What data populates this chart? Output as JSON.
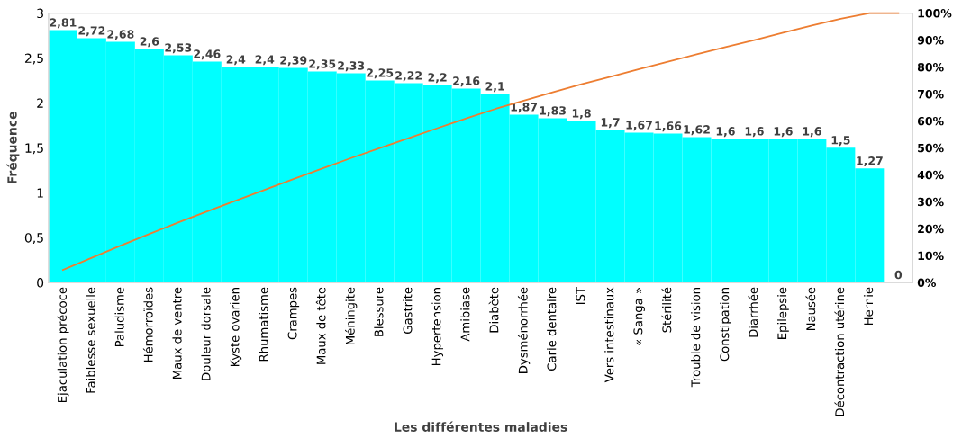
{
  "chart_data": {
    "type": "bar",
    "xlabel": "Les différentes maladies",
    "ylabel": "Fréquence",
    "categories": [
      "Ejaculation précoce",
      "Faiblesse sexuelle",
      "Paludisme",
      "Hémorroïdes",
      "Maux de ventre",
      "Douleur dorsale",
      "Kyste ovarien",
      "Rhumatisme",
      "Crampes",
      "Maux de tête",
      "Méningite",
      "Blessure",
      "Gastrite",
      "Hypertension",
      "Amibiase",
      "Diabète",
      "Dysménorrhée",
      "Carie dentaire",
      "IST",
      "Vers intestinaux",
      "« Sanga »",
      "Stérilité",
      "Trouble de vision",
      "Constipation",
      "Diarrhée",
      "Epilepsie",
      "Nausée",
      "Décontraction utérine",
      "Hernie",
      null
    ],
    "series": [
      {
        "color": "#00ffff",
        "values": [
          2.81,
          2.72,
          2.68,
          2.6,
          2.53,
          2.46,
          2.4,
          2.4,
          2.39,
          2.35,
          2.33,
          2.25,
          2.22,
          2.2,
          2.16,
          2.1,
          1.87,
          1.83,
          1.8,
          1.7,
          1.67,
          1.66,
          1.62,
          1.6,
          1.6,
          1.6,
          1.6,
          1.5,
          1.27,
          0
        ],
        "value_labels": [
          "2,81",
          "2,72",
          "2,68",
          "2,6",
          "2,53",
          "2,46",
          "2,4",
          "2,4",
          "2,39",
          "2,35",
          "2,33",
          "2,25",
          "2,22",
          "2,2",
          "2,16",
          "2,1",
          "1,87",
          "1,83",
          "1,8",
          "1,7",
          "1,67",
          "1,66",
          "1,62",
          "1,6",
          "1,6",
          "1,6",
          "1,6",
          "1,5",
          "1,27",
          "0"
        ]
      },
      {
        "type": "line",
        "axis": "y2",
        "color": "#ed7d31",
        "values": [
          4.7,
          9.2,
          13.7,
          18.0,
          22.3,
          26.4,
          30.4,
          34.4,
          38.4,
          42.3,
          46.2,
          49.9,
          53.6,
          57.3,
          60.9,
          64.4,
          67.5,
          70.6,
          73.6,
          76.4,
          79.2,
          82.0,
          84.7,
          87.4,
          90.0,
          92.7,
          95.4,
          97.9,
          100,
          100
        ]
      }
    ],
    "ylim": [
      0,
      3
    ],
    "yticks": [
      0,
      {
        "value": 0.5,
        "label": "0,5"
      },
      1,
      {
        "value": 1.5,
        "label": "1,5"
      },
      2,
      {
        "value": 2.5,
        "label": "2,5"
      },
      3
    ],
    "y2lim": [
      0,
      100
    ],
    "y2ticks": [
      {
        "value": 0,
        "label": "0%"
      },
      {
        "value": 10,
        "label": "10%"
      },
      {
        "value": 20,
        "label": "20%"
      },
      {
        "value": 30,
        "label": "30%"
      },
      {
        "value": 40,
        "label": "40%"
      },
      {
        "value": 50,
        "label": "50%"
      },
      {
        "value": 60,
        "label": "60%"
      },
      {
        "value": 70,
        "label": "70%"
      },
      {
        "value": 80,
        "label": "80%"
      },
      {
        "value": 90,
        "label": "90%"
      },
      {
        "value": 100,
        "label": "100%"
      }
    ],
    "grid": false
  }
}
